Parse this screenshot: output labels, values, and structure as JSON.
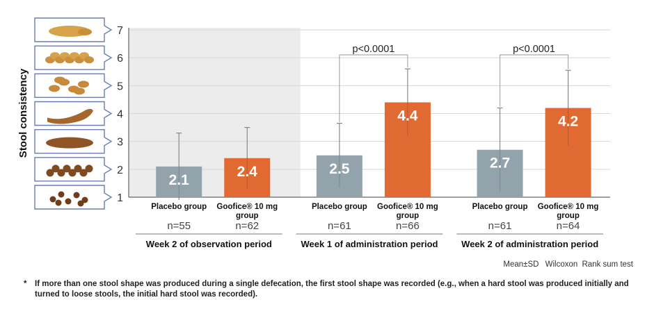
{
  "chart_data": {
    "type": "bar",
    "ylabel": "Stool consistency",
    "ylim": [
      1,
      7
    ],
    "yticks": [
      "1",
      "2",
      "3",
      "4",
      "5",
      "6",
      "7"
    ],
    "periods": [
      {
        "label": "Week 2 of observation period",
        "shaded": true,
        "bars": [
          {
            "group": "Placebo group",
            "value": 2.1,
            "value_label": "2.1",
            "sd": 1.2,
            "n": "n=55",
            "color": "#93a3ab"
          },
          {
            "group": "Goofice® 10 mg group",
            "value": 2.4,
            "value_label": "2.4",
            "sd": 1.1,
            "n": "n=62",
            "color": "#e06a32"
          }
        ]
      },
      {
        "label": "Week 1 of administration period",
        "shaded": false,
        "significance": "p<0.0001",
        "bars": [
          {
            "group": "Placebo group",
            "value": 2.5,
            "value_label": "2.5",
            "sd": 1.15,
            "n": "n=61",
            "color": "#93a3ab"
          },
          {
            "group": "Goofice® 10 mg group",
            "value": 4.4,
            "value_label": "4.4",
            "sd": 1.2,
            "n": "n=66",
            "color": "#e06a32"
          }
        ]
      },
      {
        "label": "Week 2 of administration period",
        "shaded": false,
        "significance": "p<0.0001",
        "bars": [
          {
            "group": "Placebo group",
            "value": 2.7,
            "value_label": "2.7",
            "sd": 1.5,
            "n": "n=61",
            "color": "#93a3ab"
          },
          {
            "group": "Goofice® 10 mg group",
            "value": 4.2,
            "value_label": "4.2",
            "sd": 1.35,
            "n": "n=64",
            "color": "#e06a32"
          }
        ]
      }
    ]
  },
  "stool_scale_icons": [
    "watery-stool-icon",
    "mushy-stool-icon",
    "fluffy-pieces-stool-icon",
    "normal-stool-icon",
    "cracked-sausage-stool-icon",
    "lumpy-sausage-stool-icon",
    "hard-lumps-stool-icon"
  ],
  "colors": {
    "placebo": "#93a3ab",
    "goofice": "#e06a32",
    "shade": "#ececec",
    "bracket": "#aaaaaa",
    "icon_border": "#6b7bb4"
  },
  "stats_note": {
    "mean_sd": "Mean±SD",
    "wilcoxon": "Wilcoxon",
    "rank_sum": "Rank sum test"
  },
  "footnote": {
    "marker": "*",
    "text": "If more than one stool shape was produced during a single defecation, the first stool shape was recorded (e.g., when a hard stool was produced initially and turned to loose stools, the initial hard stool was recorded)."
  }
}
